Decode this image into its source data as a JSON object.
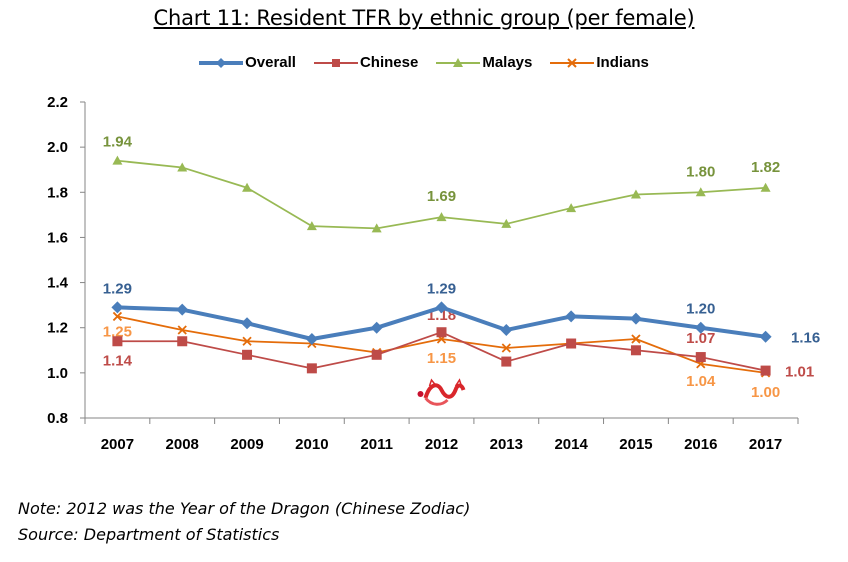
{
  "chart_data": {
    "type": "line",
    "title": "Chart 11: Resident TFR by ethnic group (per female)",
    "xlabel": "",
    "ylabel": "",
    "categories": [
      "2007",
      "2008",
      "2009",
      "2010",
      "2011",
      "2012",
      "2013",
      "2014",
      "2015",
      "2016",
      "2017"
    ],
    "ylim": [
      0.8,
      2.2
    ],
    "yticks": [
      "0.8",
      "1.0",
      "1.2",
      "1.4",
      "1.6",
      "1.8",
      "2.0",
      "2.2"
    ],
    "grid": false,
    "legend_position": "top",
    "series": [
      {
        "name": "Overall",
        "color": "#4a7ebb",
        "marker": "diamond",
        "values": [
          1.29,
          1.28,
          1.22,
          1.15,
          1.2,
          1.29,
          1.19,
          1.25,
          1.24,
          1.2,
          1.16
        ],
        "labels": [
          {
            "index": 0,
            "text": "1.29"
          },
          {
            "index": 5,
            "text": "1.29"
          },
          {
            "index": 9,
            "text": "1.20"
          },
          {
            "index": 10,
            "text": "1.16"
          }
        ],
        "label_color": "#376092"
      },
      {
        "name": "Chinese",
        "color": "#be4b48",
        "marker": "square",
        "values": [
          1.14,
          1.14,
          1.08,
          1.02,
          1.08,
          1.18,
          1.05,
          1.13,
          1.1,
          1.07,
          1.01
        ],
        "labels": [
          {
            "index": 0,
            "text": "1.14"
          },
          {
            "index": 5,
            "text": "1.18"
          },
          {
            "index": 9,
            "text": "1.07"
          },
          {
            "index": 10,
            "text": "1.01"
          }
        ],
        "label_color": "#be4b48"
      },
      {
        "name": "Malays",
        "color": "#98b954",
        "marker": "triangle",
        "values": [
          1.94,
          1.91,
          1.82,
          1.65,
          1.64,
          1.69,
          1.66,
          1.73,
          1.79,
          1.8,
          1.82
        ],
        "labels": [
          {
            "index": 0,
            "text": "1.94"
          },
          {
            "index": 5,
            "text": "1.69"
          },
          {
            "index": 9,
            "text": "1.80"
          },
          {
            "index": 10,
            "text": "1.82"
          }
        ],
        "label_color": "#77933c"
      },
      {
        "name": "Indians",
        "color": "#e46c0a",
        "marker": "x",
        "values": [
          1.25,
          1.19,
          1.14,
          1.13,
          1.09,
          1.15,
          1.11,
          1.13,
          1.15,
          1.04,
          1.0
        ],
        "labels": [
          {
            "index": 0,
            "text": "1.25"
          },
          {
            "index": 5,
            "text": "1.15"
          },
          {
            "index": 9,
            "text": "1.04"
          },
          {
            "index": 10,
            "text": "1.00"
          }
        ],
        "label_color": "#f79646"
      }
    ],
    "annotations": [
      {
        "type": "image",
        "description": "red Chinese dragon",
        "at_category": "2012"
      }
    ]
  },
  "notes": {
    "note": "Note: 2012 was the Year of the Dragon (Chinese Zodiac)",
    "source": "Source: Department of Statistics"
  }
}
